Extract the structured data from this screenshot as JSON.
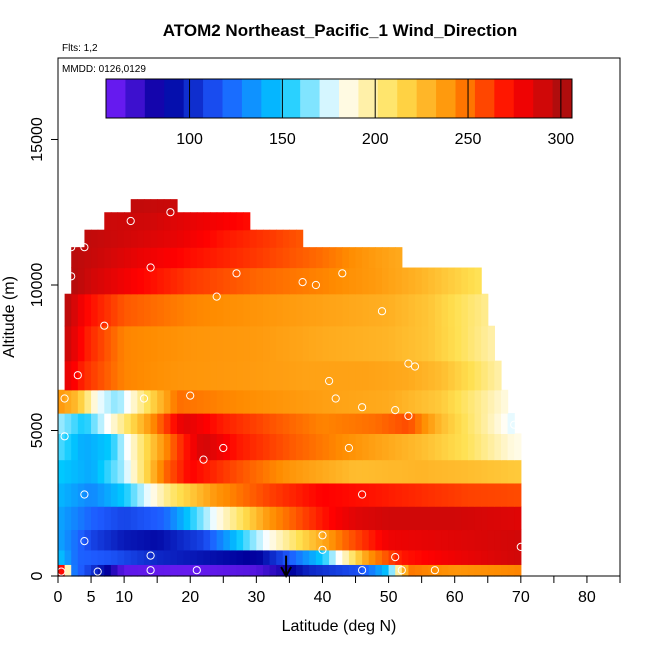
{
  "chart_data": {
    "type": "heatmap",
    "title": "ATOM2 Northeast_Pacific_1 Wind_Direction",
    "flights_label": "Flts: 1,2",
    "dates_label": "MMDD: 0126,0129",
    "xlabel": "Latitude (deg N)",
    "ylabel": "Altitude (m)",
    "xlim": [
      0,
      85
    ],
    "ylim": [
      0,
      17800
    ],
    "x_ticks": [
      0,
      5,
      10,
      20,
      30,
      40,
      50,
      60,
      70,
      80
    ],
    "y_ticks": [
      0,
      5000,
      10000,
      15000
    ],
    "colorbar": {
      "range": [
        55,
        306
      ],
      "ticks": [
        100,
        150,
        200,
        250,
        300
      ],
      "palette": [
        "#7a1fff",
        "#00009c",
        "#1e5bff",
        "#00c8ff",
        "#ffffff",
        "#ffe050",
        "#ff8c00",
        "#ff0000",
        "#a01010"
      ]
    },
    "grid": false,
    "legend": "colorbar-top",
    "bands": [
      {
        "alt": [
          0,
          400
        ],
        "lat_range": [
          0,
          70
        ],
        "stops": [
          [
            0,
            290
          ],
          [
            1,
            255
          ],
          [
            2,
            130
          ],
          [
            7,
            90
          ],
          [
            10,
            62
          ],
          [
            20,
            60
          ],
          [
            30,
            65
          ],
          [
            34,
            80
          ],
          [
            38,
            100
          ],
          [
            46,
            115
          ],
          [
            50,
            150
          ],
          [
            53,
            248
          ],
          [
            60,
            240
          ],
          [
            70,
            245
          ]
        ]
      },
      {
        "alt": [
          400,
          900
        ],
        "lat_range": [
          0,
          70
        ],
        "stops": [
          [
            0,
            150
          ],
          [
            3,
            120
          ],
          [
            8,
            115
          ],
          [
            15,
            100
          ],
          [
            20,
            95
          ],
          [
            30,
            85
          ],
          [
            40,
            150
          ],
          [
            44,
            200
          ],
          [
            47,
            240
          ],
          [
            52,
            270
          ],
          [
            60,
            280
          ],
          [
            70,
            290
          ]
        ]
      },
      {
        "alt": [
          900,
          1600
        ],
        "lat_range": [
          0,
          70
        ],
        "stops": [
          [
            0,
            140
          ],
          [
            5,
            110
          ],
          [
            10,
            95
          ],
          [
            15,
            90
          ],
          [
            22,
            110
          ],
          [
            30,
            170
          ],
          [
            37,
            215
          ],
          [
            43,
            250
          ],
          [
            50,
            280
          ],
          [
            60,
            285
          ],
          [
            70,
            290
          ]
        ]
      },
      {
        "alt": [
          1600,
          2400
        ],
        "lat_range": [
          0,
          70
        ],
        "stops": [
          [
            0,
            140
          ],
          [
            5,
            120
          ],
          [
            10,
            110
          ],
          [
            16,
            120
          ],
          [
            25,
            190
          ],
          [
            32,
            240
          ],
          [
            40,
            270
          ],
          [
            45,
            285
          ],
          [
            50,
            290
          ],
          [
            60,
            290
          ],
          [
            70,
            285
          ]
        ]
      },
      {
        "alt": [
          2400,
          3200
        ],
        "lat_range": [
          0,
          70
        ],
        "stops": [
          [
            0,
            145
          ],
          [
            5,
            130
          ],
          [
            10,
            150
          ],
          [
            17,
            205
          ],
          [
            24,
            240
          ],
          [
            32,
            260
          ],
          [
            40,
            275
          ],
          [
            48,
            270
          ],
          [
            55,
            265
          ],
          [
            62,
            260
          ],
          [
            70,
            258
          ]
        ]
      },
      {
        "alt": [
          3200,
          4000
        ],
        "lat_range": [
          0,
          70
        ],
        "stops": [
          [
            0,
            150
          ],
          [
            5,
            140
          ],
          [
            10,
            170
          ],
          [
            16,
            250
          ],
          [
            20,
            275
          ],
          [
            28,
            255
          ],
          [
            35,
            240
          ],
          [
            45,
            225
          ],
          [
            55,
            228
          ],
          [
            62,
            225
          ],
          [
            70,
            220
          ]
        ]
      },
      {
        "alt": [
          4000,
          4900
        ],
        "lat_range": [
          0,
          70
        ],
        "stops": [
          [
            0,
            160
          ],
          [
            4,
            140
          ],
          [
            8,
            150
          ],
          [
            13,
            210
          ],
          [
            18,
            260
          ],
          [
            22,
            290
          ],
          [
            27,
            270
          ],
          [
            35,
            255
          ],
          [
            45,
            240
          ],
          [
            55,
            225
          ],
          [
            62,
            210
          ],
          [
            69,
            185
          ]
        ]
      },
      {
        "alt": [
          4900,
          5600
        ],
        "lat_range": [
          0,
          69
        ],
        "stops": [
          [
            0,
            170
          ],
          [
            4,
            150
          ],
          [
            8,
            185
          ],
          [
            14,
            240
          ],
          [
            19,
            285
          ],
          [
            25,
            268
          ],
          [
            33,
            255
          ],
          [
            40,
            245
          ],
          [
            48,
            250
          ],
          [
            53,
            258
          ],
          [
            58,
            225
          ],
          [
            64,
            200
          ],
          [
            69,
            175
          ]
        ]
      },
      {
        "alt": [
          5600,
          6400
        ],
        "lat_range": [
          0,
          68
        ],
        "stops": [
          [
            0,
            240
          ],
          [
            3,
            225
          ],
          [
            6,
            180
          ],
          [
            9,
            165
          ],
          [
            13,
            205
          ],
          [
            18,
            250
          ],
          [
            25,
            245
          ],
          [
            33,
            240
          ],
          [
            42,
            235
          ],
          [
            50,
            232
          ],
          [
            58,
            220
          ],
          [
            64,
            200
          ],
          [
            68,
            185
          ]
        ]
      },
      {
        "alt": [
          6400,
          7400
        ],
        "lat_range": [
          1,
          67
        ],
        "stops": [
          [
            1,
            285
          ],
          [
            4,
            265
          ],
          [
            10,
            245
          ],
          [
            18,
            240
          ],
          [
            28,
            238
          ],
          [
            38,
            235
          ],
          [
            47,
            235
          ],
          [
            53,
            232
          ],
          [
            58,
            225
          ],
          [
            63,
            210
          ],
          [
            67,
            195
          ]
        ]
      },
      {
        "alt": [
          7400,
          8600
        ],
        "lat_range": [
          1,
          66
        ],
        "stops": [
          [
            1,
            295
          ],
          [
            4,
            270
          ],
          [
            10,
            245
          ],
          [
            20,
            240
          ],
          [
            30,
            238
          ],
          [
            40,
            232
          ],
          [
            50,
            228
          ],
          [
            56,
            222
          ],
          [
            61,
            210
          ],
          [
            66,
            195
          ]
        ]
      },
      {
        "alt": [
          8600,
          9700
        ],
        "lat_range": [
          1,
          65
        ],
        "stops": [
          [
            1,
            300
          ],
          [
            4,
            275
          ],
          [
            10,
            255
          ],
          [
            20,
            245
          ],
          [
            30,
            240
          ],
          [
            40,
            235
          ],
          [
            50,
            230
          ],
          [
            56,
            222
          ],
          [
            60,
            212
          ],
          [
            65,
            200
          ]
        ]
      },
      {
        "alt": [
          9700,
          10600
        ],
        "lat_range": [
          2,
          64
        ],
        "stops": [
          [
            2,
            300
          ],
          [
            5,
            290
          ],
          [
            12,
            275
          ],
          [
            20,
            262
          ],
          [
            30,
            252
          ],
          [
            40,
            245
          ],
          [
            48,
            238
          ],
          [
            55,
            228
          ],
          [
            60,
            218
          ],
          [
            64,
            210
          ]
        ]
      },
      {
        "alt": [
          10600,
          11300
        ],
        "lat_range": [
          2,
          52
        ],
        "stops": [
          [
            2,
            298
          ],
          [
            6,
            292
          ],
          [
            12,
            282
          ],
          [
            20,
            272
          ],
          [
            30,
            262
          ],
          [
            40,
            250
          ],
          [
            46,
            240
          ],
          [
            52,
            232
          ]
        ]
      },
      {
        "alt": [
          11300,
          11900
        ],
        "lat_range": [
          4,
          37
        ],
        "stops": [
          [
            4,
            296
          ],
          [
            10,
            290
          ],
          [
            18,
            282
          ],
          [
            25,
            270
          ],
          [
            32,
            262
          ],
          [
            37,
            255
          ]
        ]
      },
      {
        "alt": [
          11900,
          12500
        ],
        "lat_range": [
          7,
          29
        ],
        "stops": [
          [
            7,
            292
          ],
          [
            14,
            290
          ],
          [
            22,
            280
          ],
          [
            29,
            272
          ]
        ]
      },
      {
        "alt": [
          12500,
          12950
        ],
        "lat_range": [
          11,
          18
        ],
        "stops": [
          [
            11,
            295
          ],
          [
            18,
            292
          ]
        ]
      }
    ],
    "points": [
      [
        0.5,
        150
      ],
      [
        4,
        1200
      ],
      [
        6,
        150
      ],
      [
        4,
        2800
      ],
      [
        1,
        4800
      ],
      [
        1,
        6100
      ],
      [
        3,
        6900
      ],
      [
        7,
        8600
      ],
      [
        2,
        10300
      ],
      [
        2,
        11300
      ],
      [
        4,
        11300
      ],
      [
        11,
        12200
      ],
      [
        17,
        12500
      ],
      [
        14,
        10600
      ],
      [
        24,
        9600
      ],
      [
        27,
        10400
      ],
      [
        37,
        10100
      ],
      [
        39,
        10000
      ],
      [
        43,
        10400
      ],
      [
        49,
        9100
      ],
      [
        53,
        7300
      ],
      [
        54,
        7200
      ],
      [
        41,
        6700
      ],
      [
        42,
        6100
      ],
      [
        46,
        5800
      ],
      [
        51,
        5700
      ],
      [
        53,
        5500
      ],
      [
        69,
        5200
      ],
      [
        13,
        6100
      ],
      [
        20,
        6200
      ],
      [
        22,
        4000
      ],
      [
        25,
        4400
      ],
      [
        44,
        4400
      ],
      [
        46,
        2800
      ],
      [
        40,
        1400
      ],
      [
        40,
        900
      ],
      [
        51,
        650
      ],
      [
        70,
        1000
      ],
      [
        14,
        700
      ],
      [
        14,
        200
      ],
      [
        21,
        200
      ],
      [
        46,
        200
      ],
      [
        52,
        200
      ],
      [
        57,
        200
      ]
    ],
    "arrow": {
      "x": 34.5,
      "y_from": 700,
      "y_to": 0
    }
  }
}
